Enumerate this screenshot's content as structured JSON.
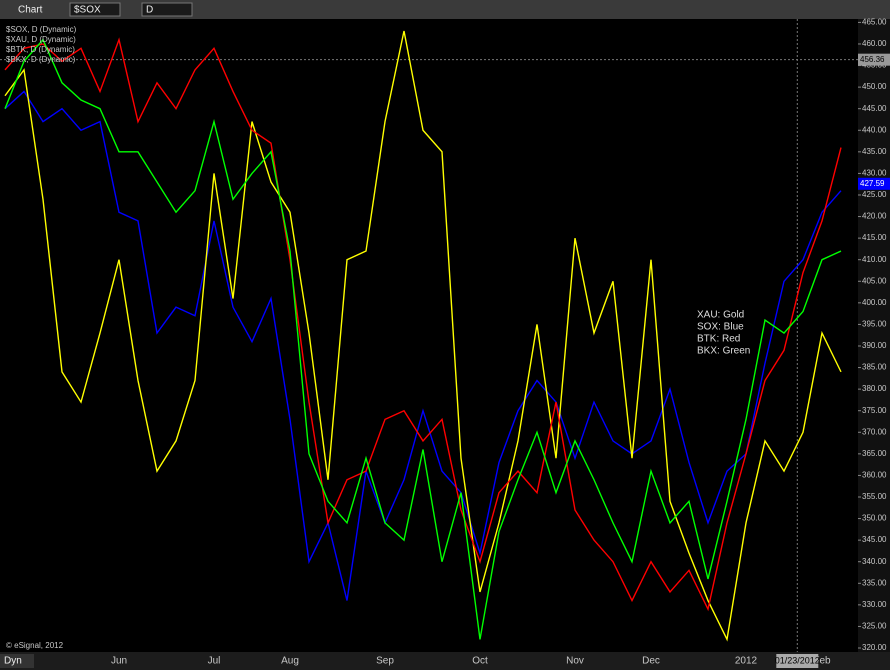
{
  "toolbar": {
    "window_title": "Chart",
    "symbol": "$SOX",
    "interval": "D",
    "mode": "Dyn"
  },
  "chart_data": {
    "type": "line",
    "categories": [
      null,
      null,
      null,
      null,
      null,
      null,
      "Jun",
      null,
      null,
      null,
      null,
      "Jul",
      null,
      null,
      null,
      "Aug",
      null,
      null,
      null,
      null,
      "Sep",
      null,
      null,
      null,
      null,
      "Oct",
      null,
      null,
      null,
      null,
      "Nov",
      null,
      null,
      null,
      "Dec",
      null,
      null,
      null,
      null,
      "2012",
      null,
      null,
      null,
      "Feb",
      null
    ],
    "series": [
      {
        "name": "$SOX, D (Dynamic)",
        "color": "#0000ff",
        "values": [
          445,
          449,
          442,
          445,
          440,
          442,
          421,
          419,
          393,
          399,
          397,
          419,
          399,
          391,
          401,
          373,
          340,
          349,
          331,
          361,
          349,
          359,
          375,
          361,
          356,
          342,
          363,
          375,
          382,
          377,
          364,
          377,
          368,
          365,
          368,
          380,
          363,
          349,
          361,
          365,
          386,
          405,
          410,
          421,
          426
        ]
      },
      {
        "name": "$XAU, D (Dynamic)",
        "color": "#ffff00",
        "values": [
          448,
          454,
          424,
          384,
          377,
          393,
          410,
          382,
          361,
          368,
          382,
          430,
          401,
          442,
          428,
          421,
          393,
          359,
          410,
          412,
          442,
          463,
          440,
          435,
          364,
          333,
          349,
          368,
          395,
          364,
          415,
          393,
          405,
          364,
          410,
          354,
          342,
          331,
          322,
          349,
          368,
          361,
          370,
          393,
          384
        ]
      },
      {
        "name": "$BTK, D (Dynamic)",
        "color": "#ff0000",
        "values": [
          454,
          459,
          460,
          456,
          459,
          449,
          461,
          442,
          451,
          445,
          454,
          459,
          449,
          440,
          437,
          410,
          377,
          349,
          359,
          361,
          373,
          375,
          368,
          373,
          352,
          340,
          356,
          361,
          356,
          377,
          352,
          345,
          340,
          331,
          340,
          333,
          338,
          329,
          349,
          365,
          382,
          389,
          407,
          419,
          436
        ]
      },
      {
        "name": "$BKX, D (Dynamic)",
        "color": "#00ff00",
        "values": [
          445,
          456,
          461,
          451,
          447,
          445,
          435,
          435,
          428,
          421,
          426,
          442,
          424,
          430,
          435,
          412,
          365,
          354,
          349,
          364,
          349,
          345,
          366,
          340,
          356,
          322,
          347,
          359,
          370,
          356,
          368,
          359,
          349,
          340,
          361,
          349,
          354,
          336,
          354,
          373,
          396,
          393,
          398,
          410,
          412
        ]
      }
    ],
    "ylim": [
      320,
      465
    ],
    "yticks": [
      {
        "value": 320,
        "label": "320.00"
      },
      {
        "value": 325,
        "label": "325.00"
      },
      {
        "value": 330,
        "label": "330.00"
      },
      {
        "value": 335,
        "label": "335.00"
      },
      {
        "value": 340,
        "label": "340.00"
      },
      {
        "value": 345,
        "label": "345.00"
      },
      {
        "value": 350,
        "label": "350.00"
      },
      {
        "value": 355,
        "label": "355.00"
      },
      {
        "value": 360,
        "label": "360.00"
      },
      {
        "value": 365,
        "label": "365.00"
      },
      {
        "value": 370,
        "label": "370.00"
      },
      {
        "value": 375,
        "label": "375.00"
      },
      {
        "value": 380,
        "label": "380.00"
      },
      {
        "value": 385,
        "label": "385.00"
      },
      {
        "value": 390,
        "label": "390.00"
      },
      {
        "value": 395,
        "label": "395.00"
      },
      {
        "value": 400,
        "label": "400.00"
      },
      {
        "value": 405,
        "label": "405.00"
      },
      {
        "value": 410,
        "label": "410.00"
      },
      {
        "value": 415,
        "label": "415.00"
      },
      {
        "value": 420,
        "label": "420.00"
      },
      {
        "value": 425,
        "label": "425.00"
      },
      {
        "value": 430,
        "label": "430.00"
      },
      {
        "value": 435,
        "label": "435.00"
      },
      {
        "value": 440,
        "label": "440.00"
      },
      {
        "value": 445,
        "label": "445.00"
      },
      {
        "value": 450,
        "label": "450.00"
      },
      {
        "value": 455,
        "label": "455.00"
      },
      {
        "value": 460,
        "label": "460.00"
      },
      {
        "value": 465,
        "label": "465.00"
      }
    ],
    "last_value": {
      "value": 427.59,
      "label": "427.59",
      "color": "#0000ff"
    },
    "crosshair": {
      "value": 456.36,
      "label": "456.36",
      "x_label": "01/23/2012"
    },
    "annotations": [
      "XAU:  Gold",
      "SOX:  Blue",
      "BTK:  Red",
      "BKX:  Green"
    ],
    "footer": "© eSignal, 2012"
  }
}
